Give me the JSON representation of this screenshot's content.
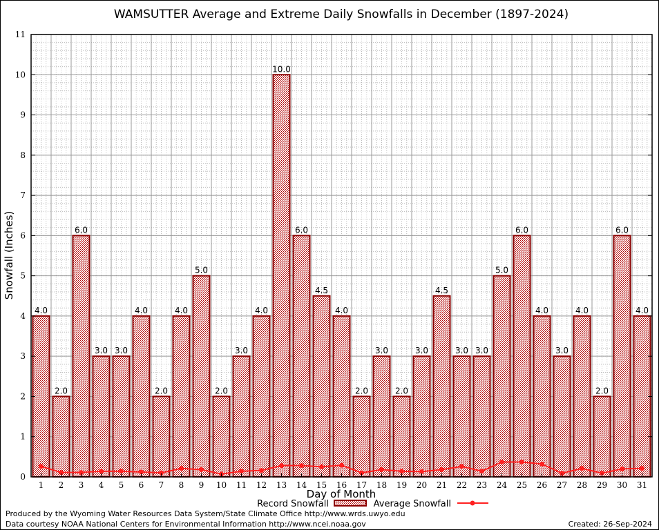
{
  "chart_data": {
    "type": "bar",
    "title": "WAMSUTTER Average and Extreme Daily Snowfalls in December (1897-2024)",
    "xlabel": "Day of Month",
    "ylabel": "Snowfall (Inches)",
    "ylim": [
      0,
      11
    ],
    "yticks": [
      "0",
      "1",
      "2",
      "3",
      "4",
      "5",
      "6",
      "7",
      "8",
      "9",
      "10",
      "11"
    ],
    "grid": true,
    "categories": [
      "1",
      "2",
      "3",
      "4",
      "5",
      "6",
      "7",
      "8",
      "9",
      "10",
      "11",
      "12",
      "13",
      "14",
      "15",
      "16",
      "17",
      "18",
      "19",
      "20",
      "21",
      "22",
      "23",
      "24",
      "25",
      "26",
      "27",
      "28",
      "29",
      "30",
      "31"
    ],
    "series": [
      {
        "name": "Record Snowfall",
        "type": "bar",
        "color": "#b00000",
        "values": [
          4.0,
          2.0,
          6.0,
          3.0,
          3.0,
          4.0,
          2.0,
          4.0,
          5.0,
          2.0,
          3.0,
          4.0,
          10.0,
          6.0,
          4.5,
          4.0,
          2.0,
          3.0,
          2.0,
          3.0,
          4.5,
          3.0,
          3.0,
          5.0,
          6.0,
          4.0,
          3.0,
          4.0,
          2.0,
          6.0,
          4.0
        ],
        "labels": [
          "4.0",
          "2.0",
          "6.0",
          "3.0",
          "3.0",
          "4.0",
          "2.0",
          "4.0",
          "5.0",
          "2.0",
          "3.0",
          "4.0",
          "10.0",
          "6.0",
          "4.5",
          "4.0",
          "2.0",
          "3.0",
          "2.0",
          "3.0",
          "4.5",
          "3.0",
          "3.0",
          "5.0",
          "6.0",
          "4.0",
          "3.0",
          "4.0",
          "2.0",
          "6.0",
          "4.0"
        ]
      },
      {
        "name": "Average Snowfall",
        "type": "line",
        "color": "#ff2020",
        "values": [
          0.26,
          0.11,
          0.11,
          0.14,
          0.14,
          0.12,
          0.1,
          0.21,
          0.18,
          0.07,
          0.14,
          0.16,
          0.28,
          0.28,
          0.25,
          0.29,
          0.1,
          0.18,
          0.14,
          0.13,
          0.18,
          0.26,
          0.14,
          0.37,
          0.37,
          0.32,
          0.09,
          0.21,
          0.09,
          0.2,
          0.21
        ]
      }
    ],
    "legend": "bottom-center"
  },
  "footer": {
    "line1": "Produced by the Wyoming Water Resources Data System/State Climate Office http://www.wrds.uwyo.edu",
    "line2": "Data courtesy NOAA National Centers for Environmental Information http://www.ncei.noaa.gov",
    "created": "Created:  26-Sep-2024"
  }
}
